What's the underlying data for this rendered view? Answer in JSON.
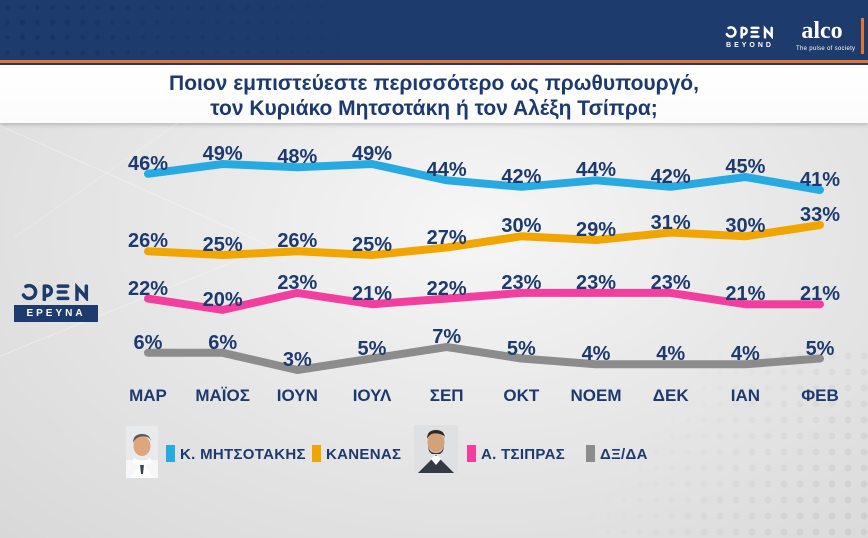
{
  "header": {
    "open_logo": {
      "name": "OPEN",
      "subtitle": "BEYOND"
    },
    "alco": {
      "name": "alco",
      "tagline": "The pulse of society"
    }
  },
  "question": {
    "line1": "Ποιον εμπιστεύεστε περισσότερο ως πρωθυπουργό,",
    "line2": "τον Κυριάκο Μητσοτάκη ή τον Αλέξη Τσίπρα;"
  },
  "station_badge": {
    "channel": "OPEN",
    "label": "ΕΡΕΥΝΑ"
  },
  "chart_data": {
    "type": "line",
    "title": "Ποιον εμπιστεύεστε περισσότερο ως πρωθυπουργό, τον Κυριάκο Μητσοτάκη ή τον Αλέξη Τσίπρα;",
    "unit": "%",
    "grid": false,
    "value_labels": true,
    "legend_position": "bottom",
    "categories": [
      "ΜΑΡ",
      "ΜΑΪΟΣ",
      "ΙΟΥΝ",
      "ΙΟΥΛ",
      "ΣΕΠ",
      "ΟΚΤ",
      "ΝΟΕΜ",
      "ΔΕΚ",
      "ΙΑΝ",
      "ΦΕΒ"
    ],
    "series": [
      {
        "name": "Κ. ΜΗΤΣΟΤΑΚΗΣ",
        "color": "#27aae1",
        "values": [
          46,
          49,
          48,
          49,
          44,
          42,
          44,
          42,
          45,
          41
        ]
      },
      {
        "name": "ΚΑΝΕΝΑΣ",
        "color": "#f0a500",
        "values": [
          26,
          25,
          26,
          25,
          27,
          30,
          29,
          31,
          30,
          33
        ]
      },
      {
        "name": "Α. ΤΣΙΠΡΑΣ",
        "color": "#f23f9f",
        "values": [
          22,
          20,
          23,
          21,
          22,
          23,
          23,
          23,
          21,
          21
        ]
      },
      {
        "name": "ΔΞ/ΔΑ",
        "color": "#8c8c8c",
        "values": [
          6,
          6,
          3,
          5,
          7,
          5,
          4,
          4,
          4,
          5
        ]
      }
    ]
  },
  "legend": {
    "items": [
      {
        "label": "Κ. ΜΗΤΣΟΤΑΚΗΣ",
        "color": "#27aae1",
        "photo": "mitsotakis"
      },
      {
        "label": "ΚΑΝΕΝΑΣ",
        "color": "#f0a500",
        "photo": ""
      },
      {
        "label": "Α. ΤΣΙΠΡΑΣ",
        "color": "#f23f9f",
        "photo": "tsipras"
      },
      {
        "label": "ΔΞ/ΔΑ",
        "color": "#8c8c8c",
        "photo": ""
      }
    ]
  },
  "colors": {
    "navy": "#1e3b6d",
    "text_navy": "#1c3a70",
    "accent_orange": "#e8732e",
    "background_gray": "#e7e7e7"
  }
}
